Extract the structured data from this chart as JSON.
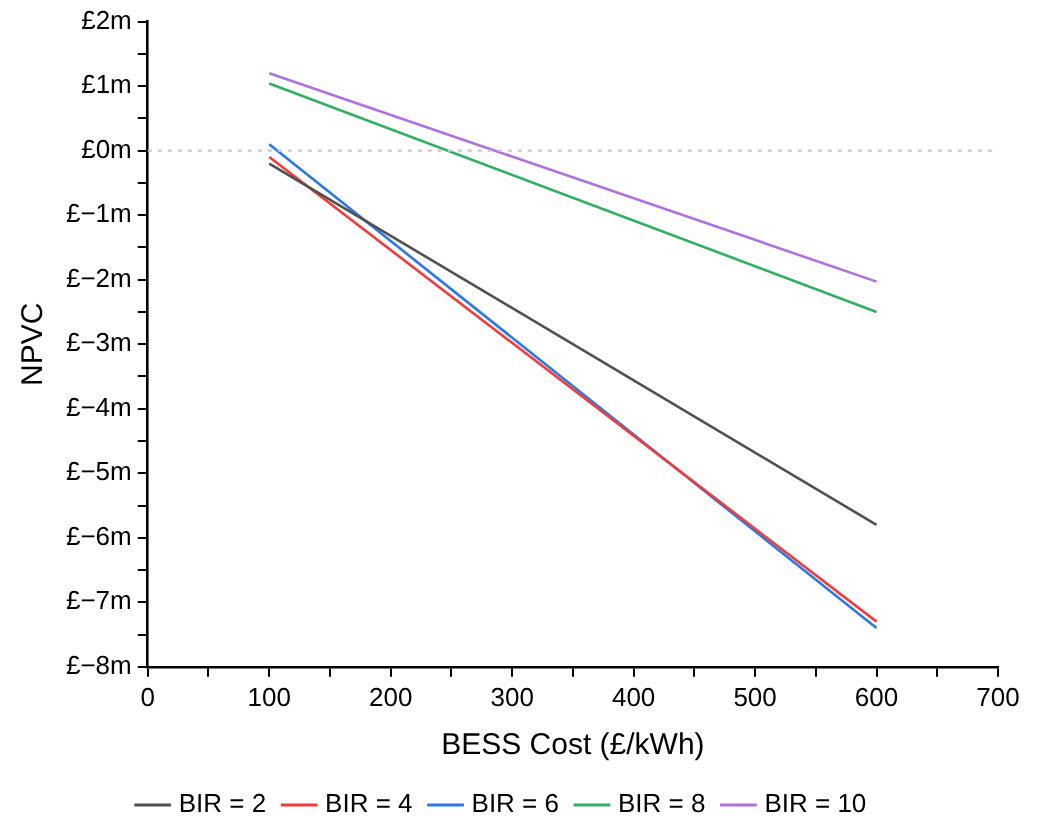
{
  "chart_data": {
    "type": "line",
    "xlabel": "BESS Cost (£/kWh)",
    "ylabel": "NPVC",
    "xlim": [
      0,
      700
    ],
    "xticks": [
      0,
      {
        "value": 50,
        "label": null
      },
      100,
      {
        "value": 150,
        "label": null
      },
      200,
      {
        "value": 250,
        "label": null
      },
      300,
      {
        "value": 350,
        "label": null
      },
      400,
      {
        "value": 450,
        "label": null
      },
      500,
      {
        "value": 550,
        "label": null
      },
      600,
      {
        "value": 650,
        "label": null
      },
      700
    ],
    "ylim": [
      -8,
      2
    ],
    "yticks": [
      {
        "value": -8,
        "label": "£−8m"
      },
      {
        "value": -7.5,
        "label": null
      },
      {
        "value": -7,
        "label": "£−7m"
      },
      {
        "value": -6.5,
        "label": null
      },
      {
        "value": -6,
        "label": "£−6m"
      },
      {
        "value": -5.5,
        "label": null
      },
      {
        "value": -5,
        "label": "£−5m"
      },
      {
        "value": -4.5,
        "label": null
      },
      {
        "value": -4,
        "label": "£−4m"
      },
      {
        "value": -3.5,
        "label": null
      },
      {
        "value": -3,
        "label": "£−3m"
      },
      {
        "value": -2.5,
        "label": null
      },
      {
        "value": -2,
        "label": "£−2m"
      },
      {
        "value": -1.5,
        "label": null
      },
      {
        "value": -1,
        "label": "£−1m"
      },
      {
        "value": -0.5,
        "label": null
      },
      {
        "value": 0,
        "label": "£0m"
      },
      {
        "value": 0.5,
        "label": null
      },
      {
        "value": 1,
        "label": "£1m"
      },
      {
        "value": 1.5,
        "label": null
      },
      {
        "value": 2,
        "label": "£2m"
      }
    ],
    "x": [
      100,
      600
    ],
    "series": [
      {
        "name": "BIR = 2",
        "color": "#505050",
        "values": [
          -0.2,
          -5.8
        ]
      },
      {
        "name": "BIR = 4",
        "color": "#f03c3c",
        "values": [
          -0.1,
          -7.3
        ]
      },
      {
        "name": "BIR = 6",
        "color": "#2a78e6",
        "values": [
          0.1,
          -7.4
        ]
      },
      {
        "name": "BIR = 8",
        "color": "#30b060",
        "values": [
          1.04,
          -2.5
        ]
      },
      {
        "name": "BIR = 10",
        "color": "#b070e0",
        "values": [
          1.2,
          -2.03
        ]
      }
    ],
    "ref_lines": [
      {
        "axis": "y",
        "value": 0,
        "color": "#c8c8c8",
        "line_style": "dotted"
      }
    ],
    "legend": "bottom",
    "grid": false,
    "marker": "none",
    "line_style": "solid"
  }
}
